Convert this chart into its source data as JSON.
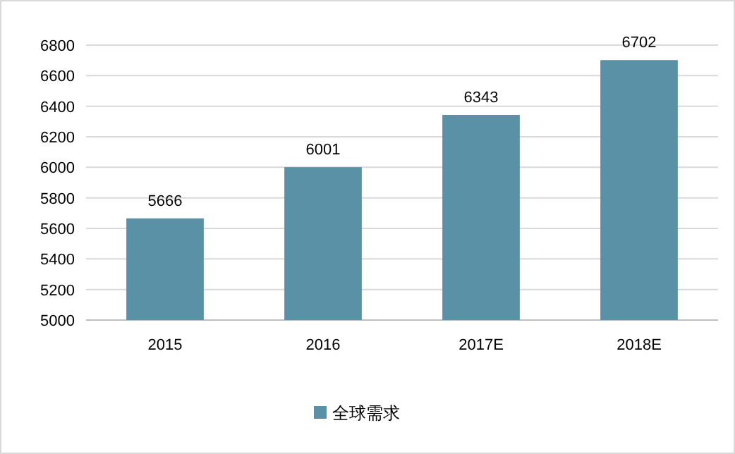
{
  "chart_data": {
    "type": "bar",
    "categories": [
      "2015",
      "2016",
      "2017E",
      "2018E"
    ],
    "series": [
      {
        "name": "全球需求",
        "color": "#5b91a7",
        "values": [
          5666,
          6001,
          6343,
          6702
        ]
      }
    ],
    "ylim": [
      5000,
      6800
    ],
    "yticks": [
      5000,
      5200,
      5400,
      5600,
      5800,
      6000,
      6200,
      6400,
      6600,
      6800
    ],
    "grid": "y",
    "legend": "bottom",
    "data_labels": true
  }
}
